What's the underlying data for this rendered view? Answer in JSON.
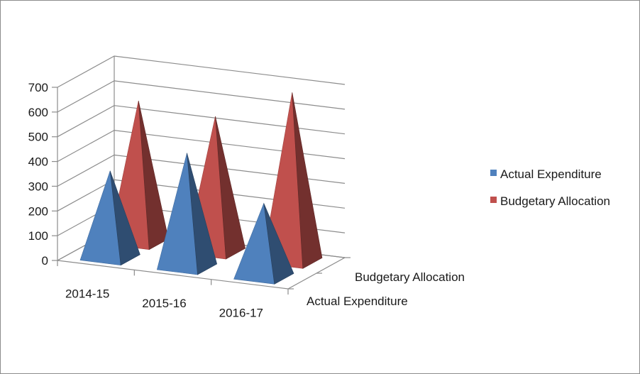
{
  "chart_data": {
    "type": "bar",
    "shape": "pyramid-3d",
    "categories": [
      "2014-15",
      "2015-16",
      "2016-17"
    ],
    "series": [
      {
        "name": "Actual Expenditure",
        "values": [
          350,
          460,
          295
        ],
        "color": "#4f81bd"
      },
      {
        "name": "Budgetary Allocation",
        "values": [
          570,
          545,
          680
        ],
        "color": "#c0504d"
      }
    ],
    "depth_labels": [
      "Budgetary Allocation",
      "Actual Expenditure"
    ],
    "y_ticks": [
      "0",
      "100",
      "200",
      "300",
      "400",
      "500",
      "600",
      "700"
    ],
    "ylim": [
      0,
      700
    ],
    "grid": true,
    "legend_position": "right"
  }
}
